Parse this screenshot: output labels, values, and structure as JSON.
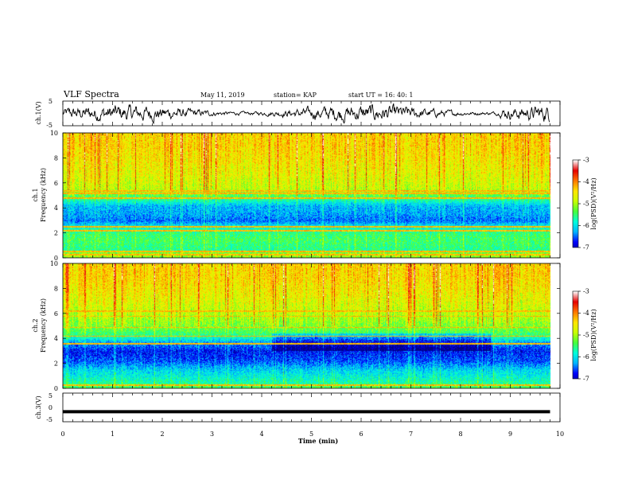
{
  "header": {
    "title": "VLF Spectra",
    "date": "May 11, 2019",
    "station": "station= KAP",
    "start": "start  UT  =   16: 40: 1"
  },
  "chart_data": [
    {
      "type": "line",
      "panel": "waveform-ch1",
      "ylabel": "ch.1(V)",
      "ylim": [
        -5,
        5
      ],
      "yticks": [
        "5",
        "-5"
      ],
      "xlim": [
        0,
        10
      ],
      "note": "noisy waveform, roughly between -2.5 and 2.5 V, highest near 9.6 min"
    },
    {
      "type": "heatmap",
      "panel": "spectrogram-ch1",
      "ylabel": "ch.1\nFrequency  (kHz)",
      "ylim": [
        0,
        10
      ],
      "yticks": [
        "0",
        "2",
        "4",
        "6",
        "8",
        "10"
      ],
      "xlim": [
        0,
        10
      ],
      "colorbar": {
        "label": "log(PSD)(V²/Hz)",
        "range": [
          -7,
          -3
        ],
        "ticks": [
          "-3",
          "-4",
          "-5",
          "-6",
          "-7"
        ]
      },
      "frequency_profile_kHz": [
        [
          0,
          -4.8
        ],
        [
          0.3,
          -4.6
        ],
        [
          0.6,
          -5.3
        ],
        [
          1.0,
          -5.2
        ],
        [
          1.5,
          -5.1
        ],
        [
          2.0,
          -5.2
        ],
        [
          2.5,
          -5.6
        ],
        [
          3.0,
          -6.2
        ],
        [
          3.5,
          -6.0
        ],
        [
          4.2,
          -5.9
        ],
        [
          4.8,
          -5.2
        ],
        [
          5.5,
          -4.5
        ],
        [
          6.5,
          -4.3
        ],
        [
          8.0,
          -4.1
        ],
        [
          9.0,
          -4.0
        ],
        [
          10.0,
          -4.0
        ]
      ],
      "lines_kHz": [
        0.3,
        0.55,
        2.2,
        2.5,
        4.8,
        5.2,
        5.4
      ]
    },
    {
      "type": "heatmap",
      "panel": "spectrogram-ch2",
      "ylabel": "ch.2\nFrequency  (kHz)",
      "ylim": [
        0,
        10
      ],
      "yticks": [
        "0",
        "2",
        "4",
        "6",
        "8",
        "10"
      ],
      "xlim": [
        0,
        10
      ],
      "colorbar": {
        "label": "log(PSD)(V²/Hz)",
        "range": [
          -7,
          -3
        ],
        "ticks": [
          "-3",
          "-4",
          "-5",
          "-6",
          "-7"
        ]
      },
      "frequency_profile_kHz": [
        [
          0,
          -5.0
        ],
        [
          0.4,
          -5.3
        ],
        [
          1.0,
          -5.6
        ],
        [
          1.5,
          -5.8
        ],
        [
          2.2,
          -6.3
        ],
        [
          3.0,
          -6.5
        ],
        [
          3.7,
          -6.0
        ],
        [
          4.3,
          -5.2
        ],
        [
          5.0,
          -4.8
        ],
        [
          6.0,
          -4.5
        ],
        [
          7.5,
          -4.2
        ],
        [
          9.0,
          -4.0
        ],
        [
          10.0,
          -4.0
        ]
      ],
      "lines_kHz": [
        0.3,
        3.6,
        4.2,
        4.9,
        5.8,
        6.2
      ]
    },
    {
      "type": "line",
      "panel": "waveform-ch3",
      "ylabel": "ch.3(V)",
      "ylim": [
        -5,
        5
      ],
      "yticks": [
        "5",
        "0",
        "-5"
      ],
      "xlim": [
        0,
        10
      ],
      "series": [
        {
          "x": [
            0,
            9.8
          ],
          "values": [
            -1.5,
            -1.5
          ]
        }
      ]
    }
  ],
  "xaxis": {
    "label": "Time  (min)",
    "ticks": [
      "0",
      "1",
      "2",
      "3",
      "4",
      "5",
      "6",
      "7",
      "8",
      "9",
      "10"
    ],
    "range": [
      0,
      10
    ],
    "data_end_min": 9.8
  },
  "colors": {
    "colormap": [
      "#000080",
      "#0000ff",
      "#00b4ff",
      "#00ffdc",
      "#46ff3c",
      "#c8ff00",
      "#ffe600",
      "#ff7800",
      "#e60000",
      "#ffffff"
    ],
    "line": "#000000"
  }
}
